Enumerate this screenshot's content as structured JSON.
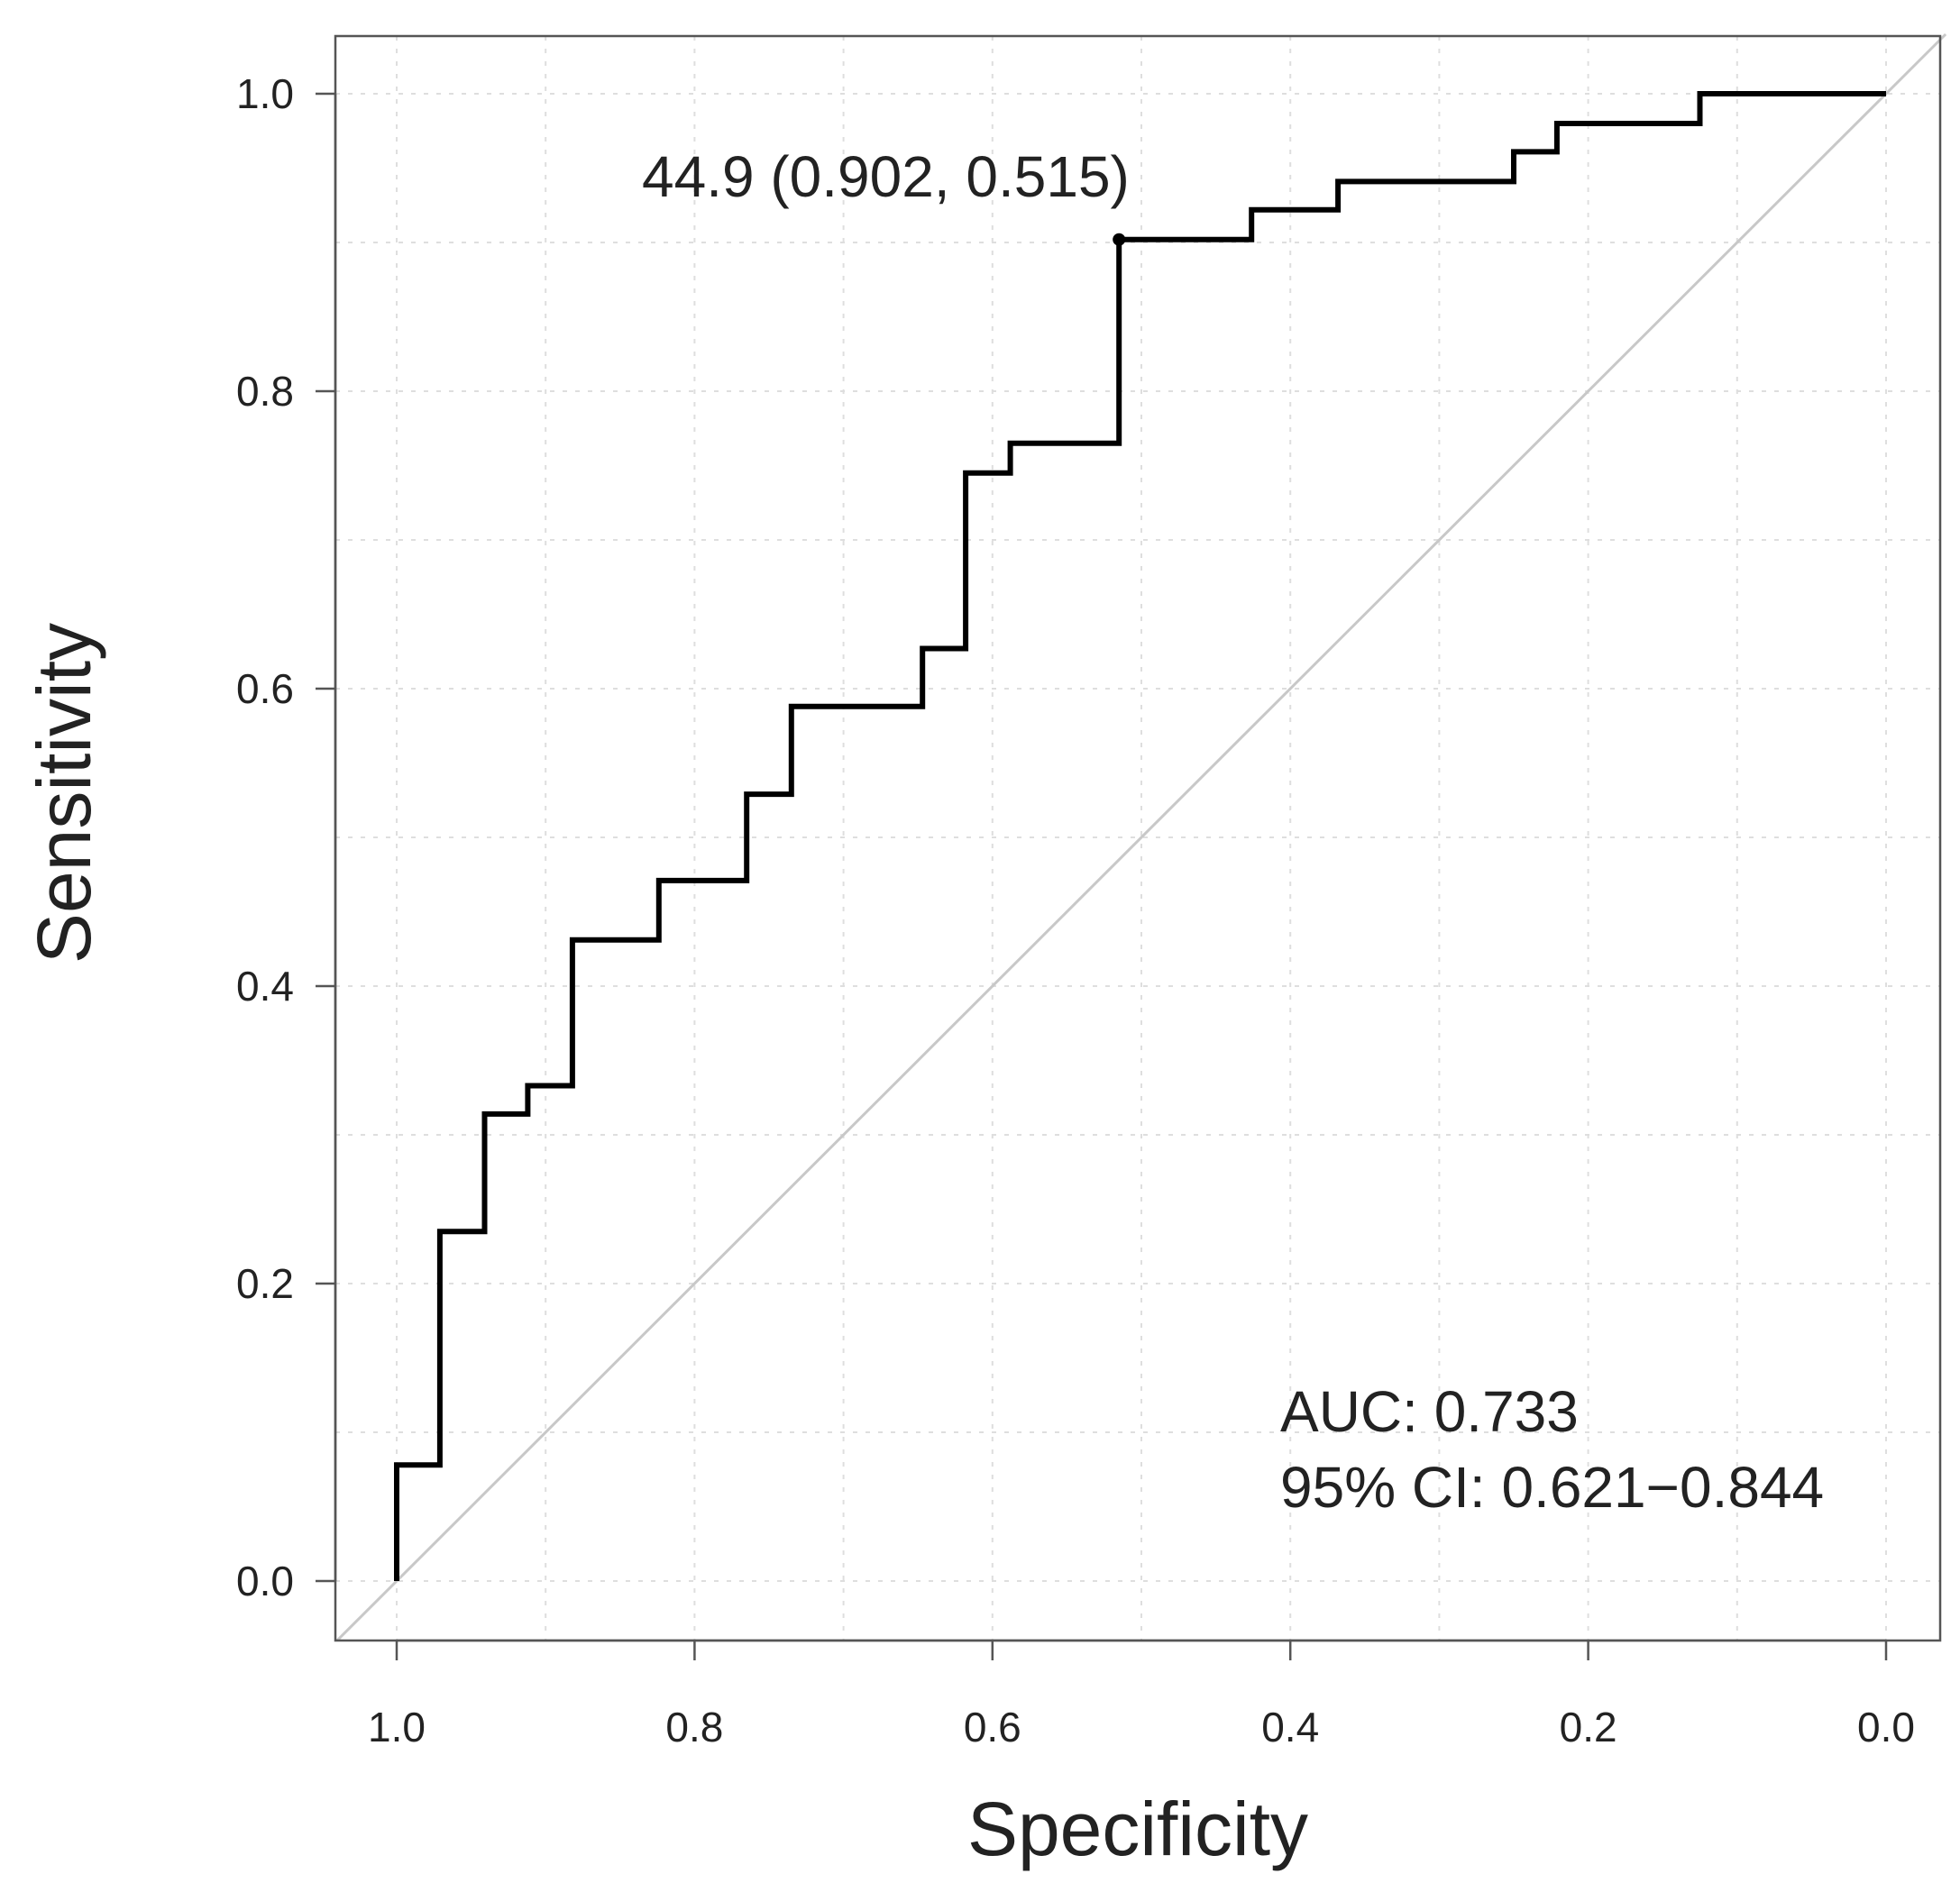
{
  "chart_data": {
    "type": "line",
    "xlabel": "Specificity",
    "ylabel": "Sensitivity",
    "xlim": [
      1.0,
      0.0
    ],
    "ylim": [
      0.0,
      1.0
    ],
    "x_reversed": true,
    "grid": true,
    "x_ticks": [
      "1.0",
      "0.8",
      "0.6",
      "0.4",
      "0.2",
      "0.0"
    ],
    "y_ticks": [
      "0.0",
      "0.2",
      "0.4",
      "0.6",
      "0.8",
      "1.0"
    ],
    "roc_points": [
      [
        1.0,
        0.0
      ],
      [
        1.0,
        0.078
      ],
      [
        0.971,
        0.078
      ],
      [
        0.971,
        0.235
      ],
      [
        0.941,
        0.235
      ],
      [
        0.941,
        0.314
      ],
      [
        0.912,
        0.314
      ],
      [
        0.912,
        0.333
      ],
      [
        0.882,
        0.333
      ],
      [
        0.882,
        0.431
      ],
      [
        0.824,
        0.431
      ],
      [
        0.824,
        0.471
      ],
      [
        0.765,
        0.471
      ],
      [
        0.765,
        0.529
      ],
      [
        0.735,
        0.529
      ],
      [
        0.735,
        0.588
      ],
      [
        0.647,
        0.588
      ],
      [
        0.647,
        0.627
      ],
      [
        0.618,
        0.627
      ],
      [
        0.618,
        0.745
      ],
      [
        0.588,
        0.745
      ],
      [
        0.588,
        0.765
      ],
      [
        0.515,
        0.765
      ],
      [
        0.515,
        0.902
      ],
      [
        0.426,
        0.902
      ],
      [
        0.426,
        0.922
      ],
      [
        0.368,
        0.922
      ],
      [
        0.368,
        0.941
      ],
      [
        0.25,
        0.941
      ],
      [
        0.25,
        0.961
      ],
      [
        0.221,
        0.961
      ],
      [
        0.221,
        0.98
      ],
      [
        0.125,
        0.98
      ],
      [
        0.125,
        1.0
      ],
      [
        0.0,
        1.0
      ]
    ],
    "reference_line": [
      [
        1.0,
        0.0
      ],
      [
        0.0,
        1.0
      ]
    ],
    "best_threshold": {
      "label": "44.9 (0.902, 0.515)",
      "threshold": 44.9,
      "specificity": 0.515,
      "sensitivity": 0.902
    },
    "auc_label": "AUC: 0.733",
    "ci_label": "95% CI: 0.621−0.844",
    "auc": 0.733,
    "ci": [
      0.621,
      0.844
    ]
  }
}
